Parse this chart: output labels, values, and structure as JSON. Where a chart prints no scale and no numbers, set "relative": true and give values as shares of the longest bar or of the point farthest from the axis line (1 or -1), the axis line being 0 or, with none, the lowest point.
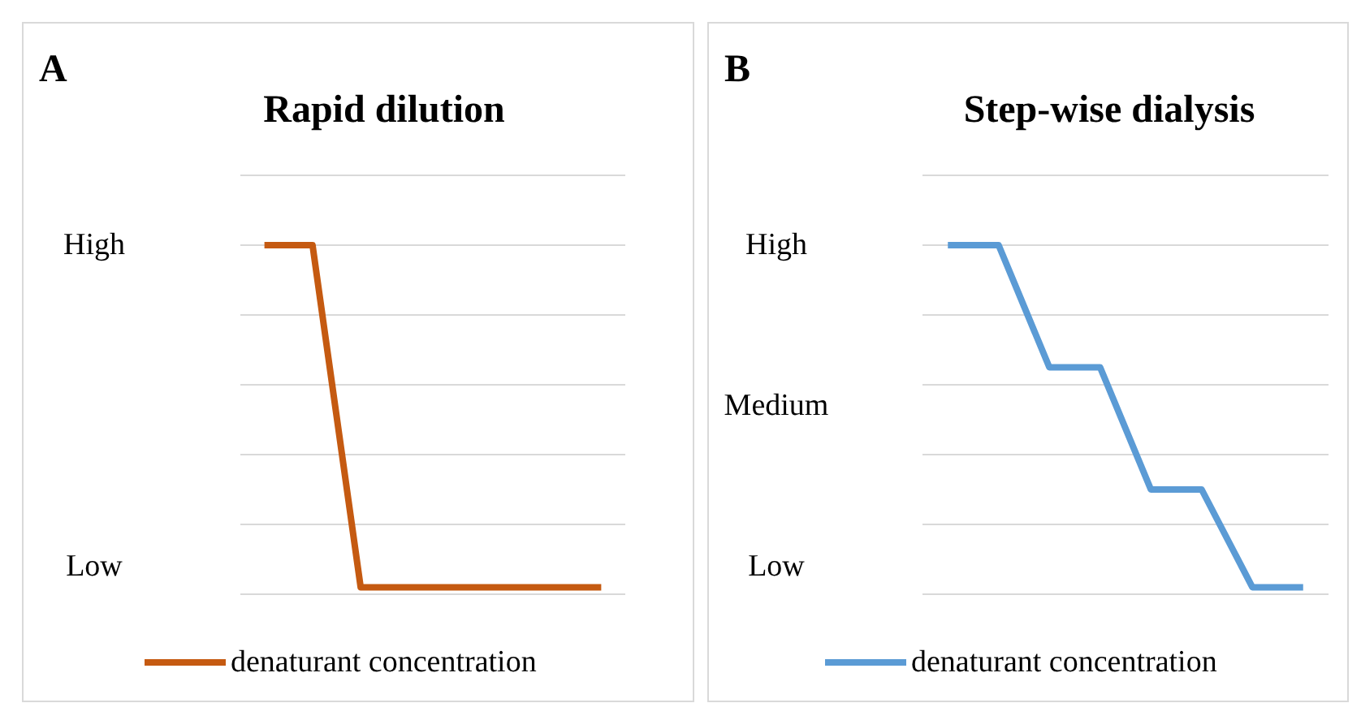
{
  "chart_data": [
    {
      "type": "line",
      "title": "Rapid dilution",
      "annotations": [
        "A",
        "High",
        "Low"
      ],
      "categories": [
        null,
        null,
        null,
        null,
        null,
        null,
        null,
        null
      ],
      "relative": true,
      "grid": "y",
      "legend": "bottom",
      "marker": "none",
      "line_style": "solid",
      "series": [
        {
          "name": "denaturant concentration",
          "color": "#c55a11",
          "values": [
            1,
            1,
            0.02,
            0.02,
            0.02,
            0.02,
            0.02,
            0.02
          ]
        }
      ]
    },
    {
      "type": "line",
      "title": "Step-wise dialysis",
      "annotations": [
        "B",
        "High",
        "Medium",
        "Low"
      ],
      "categories": [
        null,
        null,
        null,
        null,
        null,
        null,
        null,
        null
      ],
      "relative": true,
      "grid": "y",
      "legend": "bottom",
      "marker": "none",
      "line_style": "solid",
      "series": [
        {
          "name": "denaturant concentration",
          "color": "#5b9bd5",
          "values": [
            1,
            1,
            0.65,
            0.65,
            0.3,
            0.3,
            0.02,
            0.02
          ]
        }
      ]
    }
  ]
}
